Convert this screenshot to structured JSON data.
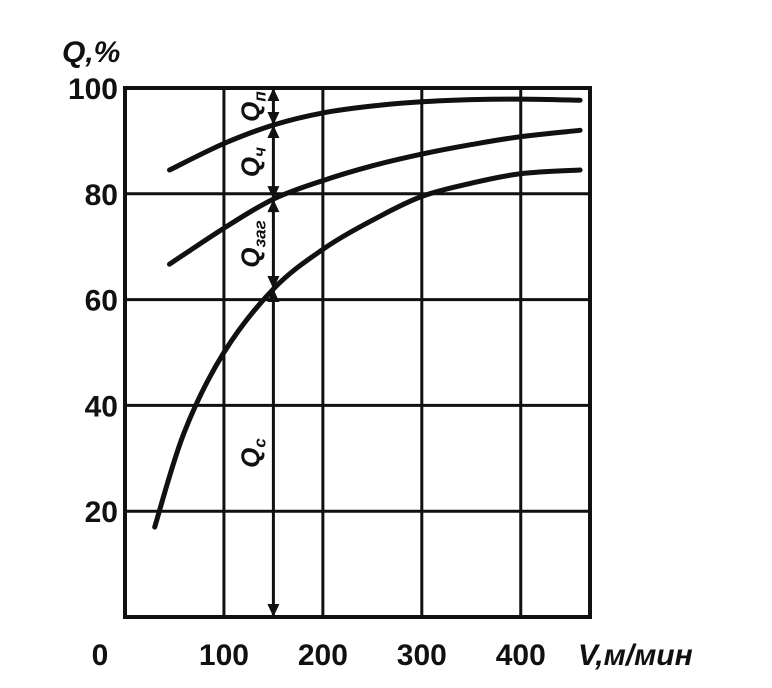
{
  "chart_data": {
    "type": "line",
    "xlabel": "V,м/мин",
    "ylabel": "Q,%",
    "xlim": [
      0,
      470
    ],
    "ylim": [
      0,
      100
    ],
    "x_ticks": [
      "0",
      "100",
      "200",
      "300",
      "400"
    ],
    "y_ticks": [
      "20",
      "40",
      "60",
      "80",
      "100"
    ],
    "grid": true,
    "series": [
      {
        "x": [
          45,
          100,
          150,
          200,
          250,
          300,
          350,
          400,
          460
        ],
        "values": [
          84.5,
          89.5,
          93,
          95.3,
          96.6,
          97.4,
          97.8,
          97.9,
          97.7
        ]
      },
      {
        "x": [
          45,
          100,
          150,
          200,
          250,
          300,
          350,
          400,
          460
        ],
        "values": [
          66.7,
          73.5,
          79,
          82.5,
          85.3,
          87.5,
          89.3,
          90.8,
          92
        ]
      },
      {
        "x": [
          30,
          60,
          100,
          150,
          200,
          250,
          300,
          350,
          400,
          460
        ],
        "values": [
          17,
          35,
          50,
          62,
          69.5,
          75,
          79.5,
          82,
          83.8,
          84.5
        ]
      }
    ],
    "annotations": [
      {
        "text": "Q",
        "subscript": "п",
        "x": 150
      },
      {
        "text": "Q",
        "subscript": "ч",
        "x": 150
      },
      {
        "text": "Q",
        "subscript": "заг",
        "x": 150
      },
      {
        "text": "Q",
        "subscript": "с",
        "x": 150
      }
    ]
  }
}
